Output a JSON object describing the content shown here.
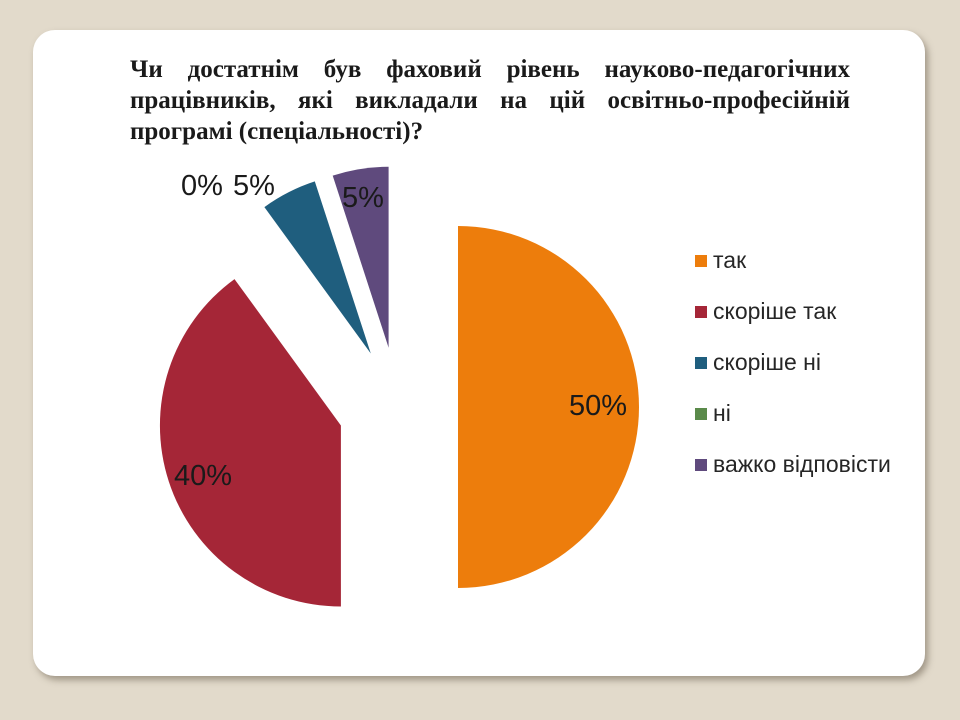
{
  "slide": {
    "background_color": "#E2DACB",
    "card_color": "#FFFFFF"
  },
  "chart_data": {
    "type": "pie",
    "title": "Чи достатнім був фаховий рівень науково-педагогічних працівників, які викладали на цій освітньо-професійній програмі (спеціальності)?",
    "categories": [
      "так",
      "скоріше так",
      "скоріше ні",
      "ні",
      "важко відповісти"
    ],
    "values": [
      50,
      40,
      5,
      0,
      5
    ],
    "unit": "%",
    "data_labels": [
      "50%",
      "40%",
      "5%",
      "0%",
      "5%"
    ],
    "colors": [
      "#ED7D0C",
      "#A52637",
      "#1F5E7E",
      "#5A8A4A",
      "#5F4A7D"
    ],
    "label_color": "#1A1A1A",
    "legend_position": "right",
    "exploded": true,
    "start_angle_deg": 0
  }
}
